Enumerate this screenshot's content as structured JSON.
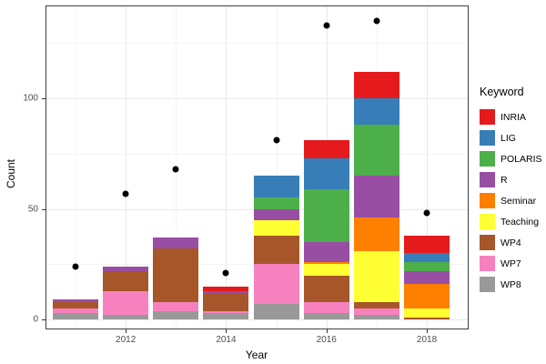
{
  "figure": {
    "xlabel": "Year",
    "ylabel": "Count"
  },
  "legend": {
    "title": "Keyword",
    "items": [
      {
        "label": "INRIA",
        "color": "#E41A1C"
      },
      {
        "label": "LIG",
        "color": "#377EB8"
      },
      {
        "label": "POLARIS",
        "color": "#4DAF4A"
      },
      {
        "label": "R",
        "color": "#984EA3"
      },
      {
        "label": "Seminar",
        "color": "#FF7F00"
      },
      {
        "label": "Teaching",
        "color": "#FFFF33"
      },
      {
        "label": "WP4",
        "color": "#A65628"
      },
      {
        "label": "WP7",
        "color": "#F781BF"
      },
      {
        "label": "WP8",
        "color": "#999999"
      }
    ]
  },
  "chart_data": {
    "type": "bar",
    "subtype": "stacked-bars-with-points",
    "title": "",
    "xlabel": "Year",
    "ylabel": "Count",
    "legend_title": "Keyword",
    "legend_position": "right",
    "x": [
      2011,
      2012,
      2013,
      2014,
      2015,
      2016,
      2017,
      2018
    ],
    "series": [
      {
        "name": "WP8",
        "color": "#999999",
        "values": [
          3,
          2,
          4,
          3,
          7,
          3,
          2,
          0
        ]
      },
      {
        "name": "WP7",
        "color": "#F781BF",
        "values": [
          2,
          11,
          4,
          1,
          18,
          5,
          3,
          0
        ]
      },
      {
        "name": "WP4",
        "color": "#A65628",
        "values": [
          3,
          9,
          24,
          8,
          13,
          12,
          3,
          1
        ]
      },
      {
        "name": "Teaching",
        "color": "#FFFF33",
        "values": [
          0,
          0,
          0,
          0,
          7,
          5,
          23,
          4
        ]
      },
      {
        "name": "Seminar",
        "color": "#FF7F00",
        "values": [
          0,
          0,
          0,
          0,
          0,
          1,
          15,
          11
        ]
      },
      {
        "name": "R",
        "color": "#984EA3",
        "values": [
          1,
          2,
          5,
          1,
          5,
          9,
          19,
          6
        ]
      },
      {
        "name": "POLARIS",
        "color": "#4DAF4A",
        "values": [
          0,
          0,
          0,
          0,
          5,
          24,
          23,
          4
        ]
      },
      {
        "name": "LIG",
        "color": "#377EB8",
        "values": [
          0,
          0,
          0,
          0,
          10,
          14,
          12,
          4
        ]
      },
      {
        "name": "INRIA",
        "color": "#E41A1C",
        "values": [
          0,
          0,
          0,
          2,
          0,
          8,
          12,
          8
        ]
      }
    ],
    "stack_totals": [
      9,
      24,
      37,
      15,
      65,
      81,
      112,
      38
    ],
    "points": {
      "marker": "circle",
      "color": "#000000",
      "values": [
        24,
        57,
        68,
        21,
        81,
        133,
        135,
        48
      ]
    },
    "xticks": [
      2012,
      2014,
      2016,
      2018
    ],
    "xticks_minor": [
      2011,
      2013,
      2015,
      2017
    ],
    "yticks": [
      0,
      50,
      100
    ],
    "yticks_minor": [
      25,
      75,
      125
    ],
    "ylim": [
      -4,
      141.5
    ],
    "grid": "major+minor",
    "panel_border": true
  },
  "colors": {
    "grid_major": "#e9e9e9",
    "grid_minor": "#f5f5f5",
    "tick_label": "#4d4d4d",
    "panel_border": "#404040"
  }
}
